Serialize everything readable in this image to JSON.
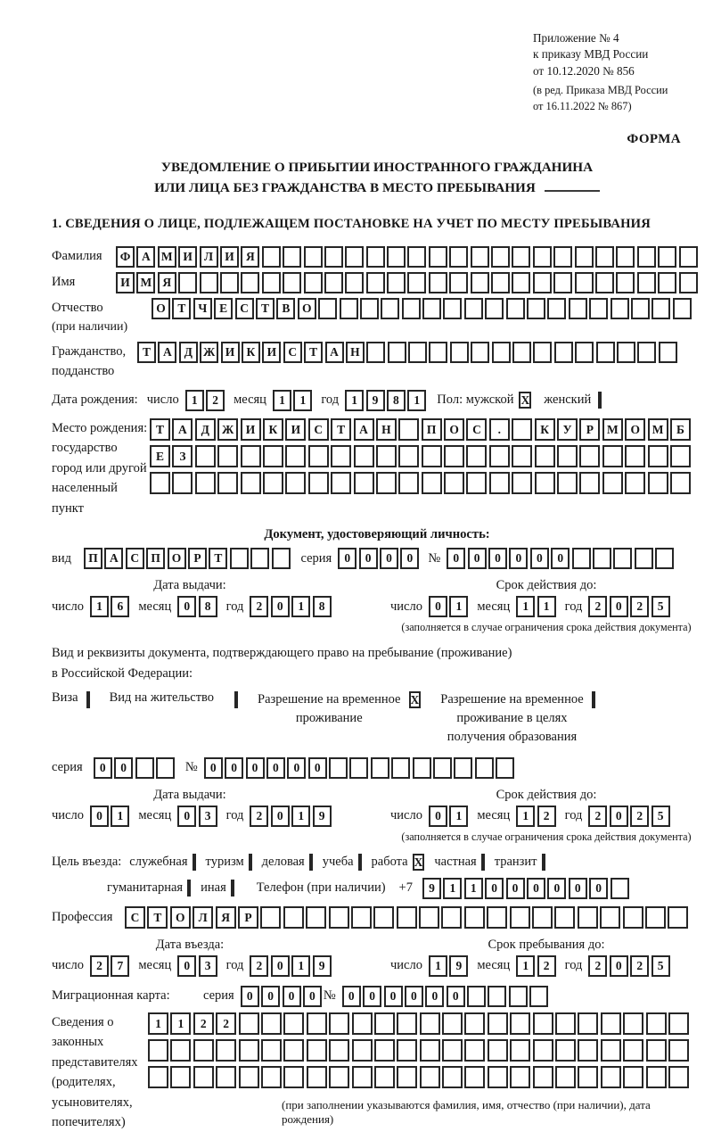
{
  "header": {
    "line1": "Приложение № 4",
    "line2": "к приказу МВД России",
    "line3": "от 10.12.2020 № 856",
    "line4": "(в ред. Приказа МВД России",
    "line5": "от 16.11.2022 № 867)",
    "forma": "ФОРМА"
  },
  "title": {
    "line1": "УВЕДОМЛЕНИЕ О ПРИБЫТИИ ИНОСТРАННОГО ГРАЖДАНИНА",
    "line2": "ИЛИ ЛИЦА БЕЗ ГРАЖДАНСТВА В МЕСТО ПРЕБЫВАНИЯ"
  },
  "section1_heading": "1. СВЕДЕНИЯ О ЛИЦЕ, ПОДЛЕЖАЩЕМ ПОСТАНОВКЕ НА УЧЕТ ПО МЕСТУ ПРЕБЫВАНИЯ",
  "date_labels": {
    "day": "число",
    "month": "месяц",
    "year": "год"
  },
  "person": {
    "surname": {
      "label": "Фамилия",
      "cells": {
        "value": "ФАМИЛИЯ",
        "len": 28
      }
    },
    "firstname": {
      "label": "Имя",
      "cells": {
        "value": "ИМЯ",
        "len": 28
      }
    },
    "patronymic": {
      "label1": "Отчество",
      "label2": "(при наличии)",
      "cells": {
        "value": "ОТЧЕСТВО",
        "len": 26
      }
    },
    "citizenship": {
      "label1": "Гражданство,",
      "label2": "подданство",
      "cells": {
        "value": "ТАДЖИКИСТАН",
        "len": 26
      }
    },
    "birth": {
      "label": "Дата рождения:",
      "date": {
        "day": "12",
        "month": "11",
        "year": "1981"
      },
      "sex_label": "Пол: мужской",
      "male": "X",
      "female_label": "женский",
      "female": ""
    },
    "birthplace": {
      "label1": "Место рождения:",
      "label2": "государство",
      "label3": "город или другой",
      "label4": "населенный пункт",
      "row1": {
        "value": "ТАДЖИКИСТАН ПОС. КУРМОМБ",
        "len": 24
      },
      "row2": {
        "value": "ЕЗ",
        "len": 24
      },
      "row3": {
        "value": "",
        "len": 24
      }
    }
  },
  "identity_doc": {
    "heading": "Документ, удостоверяющий личность:",
    "kind_label": "вид",
    "kind": {
      "value": "ПАСПОРТ",
      "len": 10
    },
    "series_label": "серия",
    "series": {
      "value": "0000",
      "len": 4
    },
    "number_label": "№",
    "number": {
      "value": "000000",
      "len": 11
    },
    "issue_heading": "Дата выдачи:",
    "issue": {
      "day": "16",
      "month": "08",
      "year": "2018"
    },
    "expiry_heading": "Срок действия до:",
    "expiry": {
      "day": "01",
      "month": "11",
      "year": "2025"
    },
    "expiry_note": "(заполняется в случае ограничения срока действия документа)"
  },
  "residence_doc": {
    "intro1": "Вид и реквизиты документа, подтверждающего право на пребывание (проживание)",
    "intro2": "в Российской Федерации:",
    "visa_label": "Виза",
    "visa": "",
    "residence_permit_label": "Вид на жительство",
    "residence_permit": "",
    "temp_line1": "Разрешение на временное",
    "temp_line2": "проживание",
    "temp": "X",
    "edu_line1": "Разрешение на временное",
    "edu_line2": "проживание в целях",
    "edu_line3": "получения образования",
    "edu": "",
    "series_label": "серия",
    "series": {
      "value": "00",
      "len": 4
    },
    "number_label": "№",
    "number": {
      "value": "000000",
      "len": 15
    },
    "issue_heading": "Дата выдачи:",
    "issue": {
      "day": "01",
      "month": "03",
      "year": "2019"
    },
    "expiry_heading": "Срок действия до:",
    "expiry": {
      "day": "01",
      "month": "12",
      "year": "2025"
    },
    "expiry_note": "(заполняется в случае ограничения срока действия документа)"
  },
  "purpose": {
    "label": "Цель въезда:",
    "row1": [
      {
        "label": "служебная",
        "v": ""
      },
      {
        "label": "туризм",
        "v": ""
      },
      {
        "label": "деловая",
        "v": ""
      },
      {
        "label": "учеба",
        "v": ""
      },
      {
        "label": "работа",
        "v": "X"
      },
      {
        "label": "частная",
        "v": ""
      },
      {
        "label": "транзит",
        "v": ""
      }
    ],
    "row2": [
      {
        "label": "гуманитарная",
        "v": ""
      },
      {
        "label": "иная",
        "v": ""
      }
    ],
    "phone_label": "Телефон (при наличии)",
    "phone_prefix": "+7",
    "phone": {
      "value": "911000000",
      "len": 10
    }
  },
  "profession": {
    "label": "Профессия",
    "cells": {
      "value": "СТОЛЯР",
      "len": 25
    }
  },
  "entry": {
    "issue_heading": "Дата въезда:",
    "issue": {
      "day": "27",
      "month": "03",
      "year": "2019"
    },
    "stay_heading": "Срок пребывания до:",
    "stay": {
      "day": "19",
      "month": "12",
      "year": "2025"
    }
  },
  "migration_card": {
    "label": "Миграционная карта:",
    "series_label": "серия",
    "series": {
      "value": "0000",
      "len": 4
    },
    "number_label": "№",
    "number": {
      "value": "000000",
      "len": 10
    }
  },
  "representatives": {
    "label1": "Сведения о",
    "label2": "законных",
    "label3": "представителях",
    "label4": "(родителях,",
    "label5": "усыновителях,",
    "label6": "попечителях)",
    "row1": {
      "value": "1122",
      "len": 24
    },
    "row2": {
      "value": "",
      "len": 24
    },
    "row3": {
      "value": "",
      "len": 24
    },
    "note": "(при заполнении указываются фамилия, имя, отчество (при наличии), дата рождения)"
  }
}
